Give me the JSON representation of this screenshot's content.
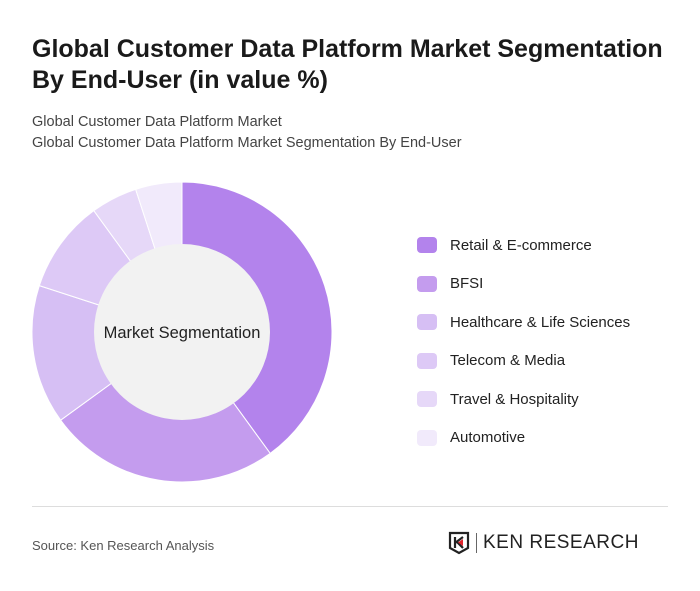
{
  "title": "Global Customer Data Platform Market Segmentation By End-User (in value %)",
  "subtitle_1": "Global Customer Data Platform Market",
  "subtitle_2": "Global Customer Data Platform Market Segmentation By End-User",
  "source": "Source: Ken Research Analysis",
  "logo_text": "KEN RESEARCH",
  "chart_data": {
    "type": "pie",
    "variant": "donut",
    "center_label": "Market Segmentation",
    "categories": [
      "Retail & E-commerce",
      "BFSI",
      "Healthcare & Life Sciences",
      "Telecom & Media",
      "Travel & Hospitality",
      "Automotive"
    ],
    "values": [
      40,
      25,
      15,
      10,
      5,
      5
    ],
    "colors": [
      "#b383ec",
      "#c49cee",
      "#d6bff4",
      "#ddc9f6",
      "#e6d8f8",
      "#f1eafb"
    ],
    "legend_position": "right"
  }
}
